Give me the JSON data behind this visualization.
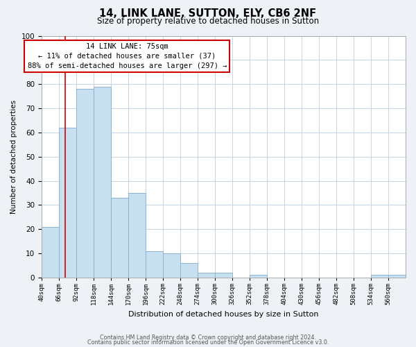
{
  "title": "14, LINK LANE, SUTTON, ELY, CB6 2NF",
  "subtitle": "Size of property relative to detached houses in Sutton",
  "xlabel": "Distribution of detached houses by size in Sutton",
  "ylabel": "Number of detached properties",
  "categories": [
    "40sqm",
    "66sqm",
    "92sqm",
    "118sqm",
    "144sqm",
    "170sqm",
    "196sqm",
    "222sqm",
    "248sqm",
    "274sqm",
    "300sqm",
    "326sqm",
    "352sqm",
    "378sqm",
    "404sqm",
    "430sqm",
    "456sqm",
    "482sqm",
    "508sqm",
    "534sqm",
    "560sqm"
  ],
  "values": [
    21,
    62,
    78,
    79,
    33,
    35,
    11,
    10,
    6,
    2,
    2,
    0,
    1,
    0,
    0,
    0,
    0,
    0,
    0,
    1,
    1
  ],
  "bar_color": "#c8dff0",
  "bar_edge_color": "#8ab4d4",
  "vline_color": "#cc0000",
  "annotation_line1": "14 LINK LANE: 75sqm",
  "annotation_line2": "← 11% of detached houses are smaller (37)",
  "annotation_line3": "88% of semi-detached houses are larger (297) →",
  "annotation_box_facecolor": "#ffffff",
  "annotation_box_edgecolor": "#cc0000",
  "ylim": [
    0,
    100
  ],
  "footer_line1": "Contains HM Land Registry data © Crown copyright and database right 2024.",
  "footer_line2": "Contains public sector information licensed under the Open Government Licence v3.0.",
  "background_color": "#eef2f7",
  "plot_background": "#ffffff",
  "grid_color": "#c5d5e5"
}
